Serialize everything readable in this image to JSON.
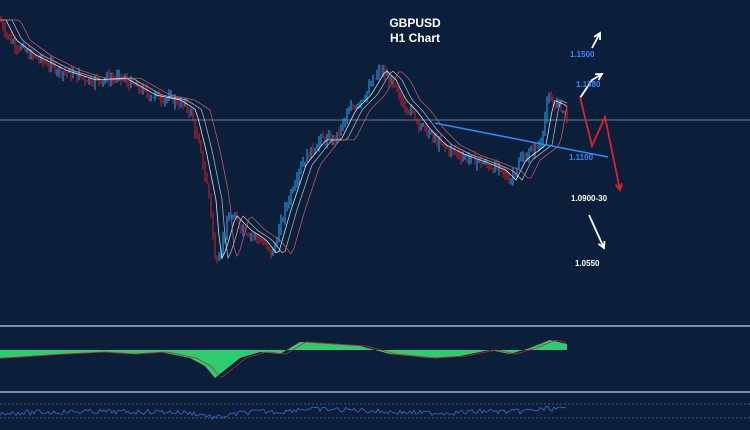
{
  "chart_data": {
    "type": "line",
    "title": "GBPUSD",
    "subtitle": "H1 Chart",
    "xlabel": "",
    "ylabel": "",
    "ylim": [
      1.03,
      1.17
    ],
    "grid": false,
    "series": [
      {
        "name": "price",
        "x": [
          0,
          10,
          30,
          60,
          90,
          120,
          150,
          175,
          190,
          200,
          210,
          215,
          220,
          230,
          245,
          260,
          272,
          285,
          300,
          320,
          335,
          350,
          365,
          380,
          390,
          400,
          410,
          425,
          440,
          460,
          480,
          500,
          510,
          520,
          540,
          548,
          560,
          567
        ],
        "values": [
          1.166,
          1.1569,
          1.15,
          1.1431,
          1.1386,
          1.1395,
          1.1317,
          1.1294,
          1.1249,
          1.1066,
          1.0837,
          1.0563,
          1.0609,
          1.0769,
          1.07,
          1.0655,
          1.0586,
          1.0792,
          1.0997,
          1.1112,
          1.1112,
          1.1249,
          1.1317,
          1.1431,
          1.1386,
          1.1294,
          1.1249,
          1.1157,
          1.1089,
          1.1043,
          1.1011,
          1.0974,
          1.0929,
          1.102,
          1.1089,
          1.1294,
          1.1271,
          1.1212
        ]
      }
    ],
    "reference_level": 1.1203,
    "trendline": {
      "x": [
        435,
        608
      ],
      "values": [
        1.1189,
        1.1034
      ]
    },
    "levels": [
      {
        "label": "1.1500",
        "value": 1.15,
        "color": "#2f8cff"
      },
      {
        "label": "1.1380",
        "value": 1.138,
        "color": "#2f8cff"
      },
      {
        "label": "1.1100",
        "value": 1.11,
        "color": "#2f8cff"
      },
      {
        "label": "1.0900-30",
        "value": 1.09,
        "color": "#ffffff"
      },
      {
        "label": "1.0550",
        "value": 1.055,
        "color": "#ffffff"
      }
    ],
    "oscillator": {
      "x": [
        0,
        30,
        60,
        100,
        130,
        160,
        190,
        205,
        215,
        225,
        240,
        260,
        280,
        300,
        330,
        360,
        390,
        410,
        430,
        460,
        490,
        510,
        530,
        550,
        567
      ],
      "values": [
        -4,
        -3,
        -2,
        -1,
        -2,
        -1,
        -4,
        -8,
        -14,
        -10,
        -4,
        -1,
        -2,
        4,
        3,
        2,
        -2,
        -3,
        -4,
        -3,
        0,
        -2,
        1,
        5,
        3
      ]
    },
    "colors": {
      "up": "#2aa8ff",
      "down": "#d0202a",
      "histogram": "#2ecc71",
      "bg": "#0b1f3a"
    }
  }
}
